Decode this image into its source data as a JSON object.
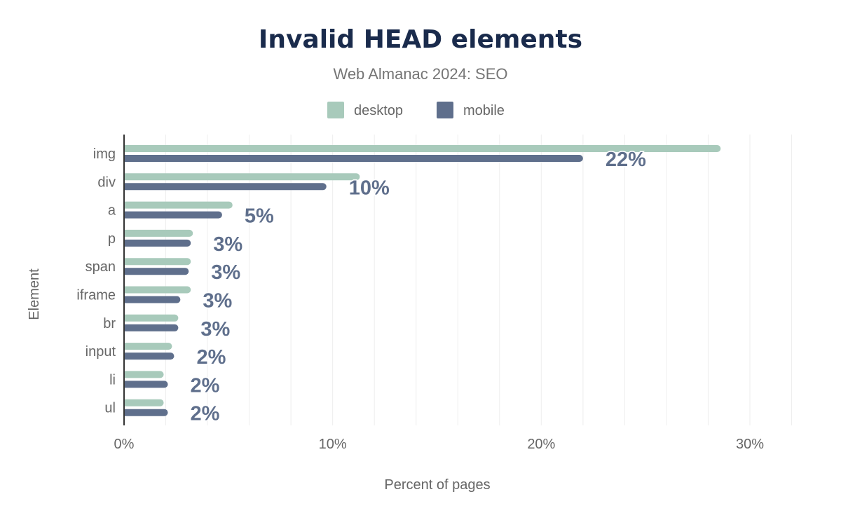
{
  "chart_data": {
    "type": "bar",
    "orientation": "horizontal",
    "title": "Invalid HEAD elements",
    "subtitle": "Web Almanac 2024: SEO",
    "xlabel": "Percent of pages",
    "ylabel": "Element",
    "xlim": [
      0,
      30
    ],
    "xticks": [
      0,
      10,
      20,
      30
    ],
    "xtick_labels": [
      "0%",
      "10%",
      "20%",
      "30%"
    ],
    "grid": true,
    "legend": "top-center",
    "categories": [
      "img",
      "div",
      "a",
      "p",
      "span",
      "iframe",
      "br",
      "input",
      "li",
      "ul"
    ],
    "series": [
      {
        "name": "desktop",
        "color": "#a8cabb",
        "values": [
          28.6,
          11.3,
          5.2,
          3.3,
          3.2,
          3.2,
          2.6,
          2.3,
          1.9,
          1.9
        ]
      },
      {
        "name": "mobile",
        "color": "#5f6f8c",
        "values": [
          22.0,
          9.7,
          4.7,
          3.2,
          3.1,
          2.7,
          2.6,
          2.4,
          2.1,
          2.1
        ]
      }
    ],
    "data_labels": [
      "22%",
      "10%",
      "5%",
      "3%",
      "3%",
      "3%",
      "3%",
      "2%",
      "2%",
      "2%"
    ]
  }
}
